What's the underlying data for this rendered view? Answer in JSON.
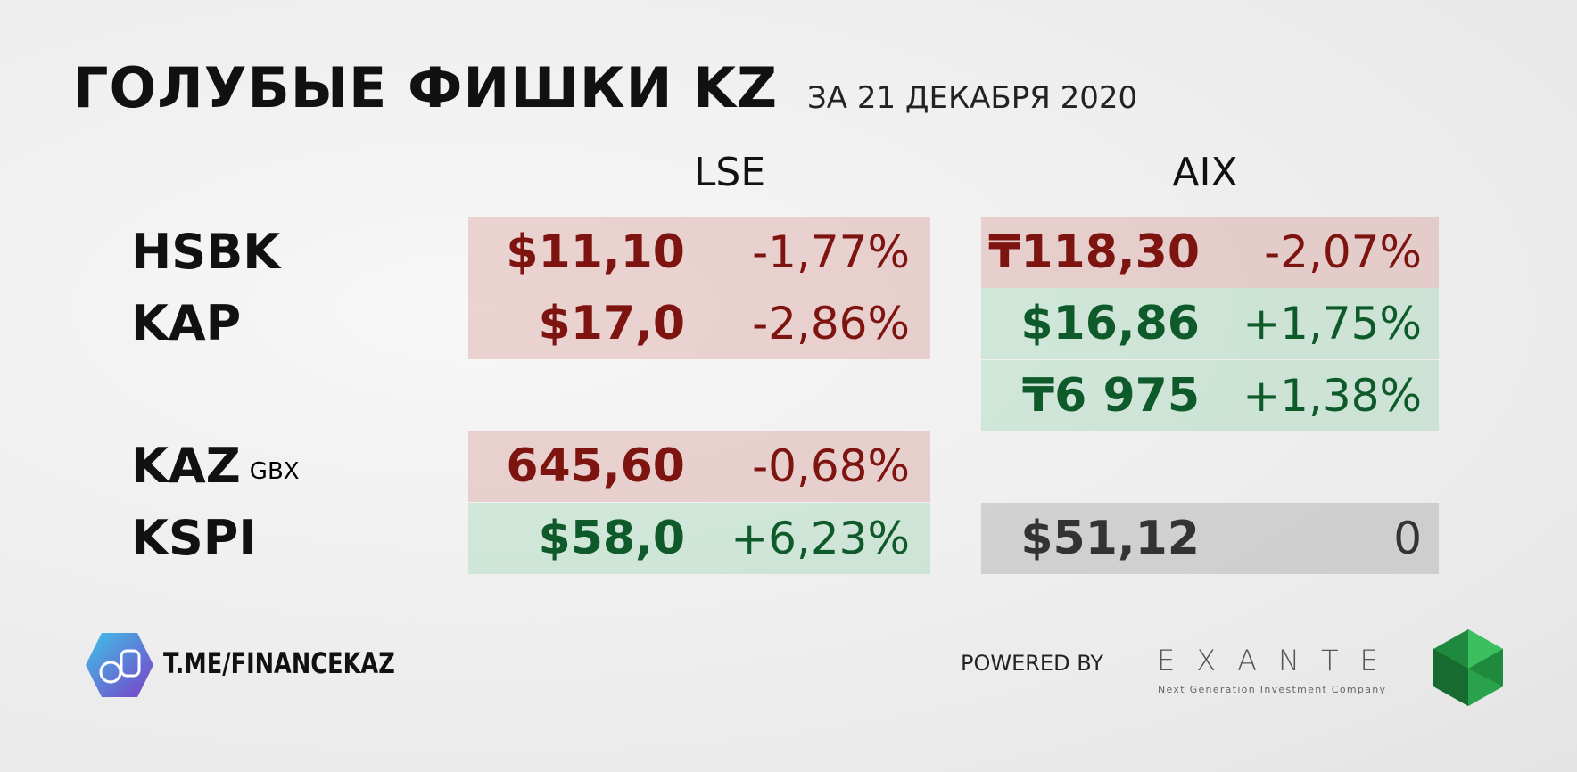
{
  "header": {
    "title": "ГОЛУБЫЕ ФИШКИ KZ",
    "subtitle": "ЗА 21 ДЕКАБРЯ 2020"
  },
  "columns": [
    "LSE",
    "AIX"
  ],
  "rows": [
    {
      "ticker": "HSBK",
      "lse": {
        "price": "$11,10",
        "change": "-1,77%"
      },
      "aix": {
        "price": "₸118,30",
        "change": "-2,07%"
      }
    },
    {
      "ticker": "KAP",
      "lse": {
        "price": "$17,0",
        "change": "-2,86%"
      },
      "aix": {
        "price": "$16,86",
        "change": "+1,75%"
      }
    },
    {
      "aix": {
        "price": "₸6 975",
        "change": "+1,38%"
      }
    },
    {
      "ticker": "KAZ",
      "unit": "GBX",
      "lse": {
        "price": "645,60",
        "change": "-0,68%"
      }
    },
    {
      "ticker": "KSPI",
      "lse": {
        "price": "$58,0",
        "change": "+6,23%"
      },
      "aix": {
        "price": "$51,12",
        "change": "0"
      }
    }
  ],
  "footer": {
    "channel": "T.ME/FINANCEKAZ",
    "powered": "POWERED BY",
    "brand": "EXANTE",
    "tagline": "Next Generation Investment Company"
  }
}
